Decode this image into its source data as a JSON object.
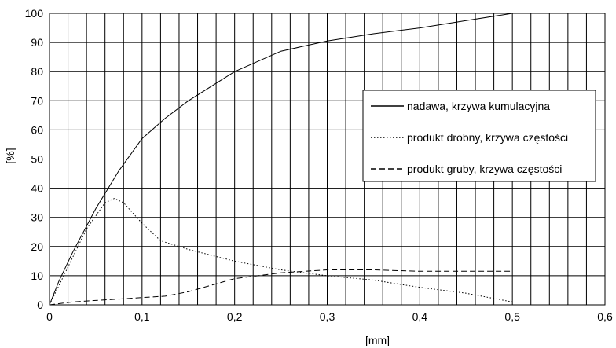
{
  "chart_data": {
    "type": "line",
    "xlabel": "[mm]",
    "ylabel": "[%]",
    "xlim": [
      0,
      0.6
    ],
    "ylim": [
      0,
      100
    ],
    "x_ticks": [
      0,
      0.1,
      0.2,
      0.3,
      0.4,
      0.5,
      0.6
    ],
    "x_tick_labels": [
      "0",
      "0,1",
      "0,2",
      "0,3",
      "0,4",
      "0,5",
      "0,6"
    ],
    "y_ticks": [
      0,
      10,
      20,
      30,
      40,
      50,
      60,
      70,
      80,
      90,
      100
    ],
    "y_tick_labels": [
      "0",
      "10",
      "20",
      "30",
      "40",
      "50",
      "60",
      "70",
      "80",
      "90",
      "100"
    ],
    "grid": true,
    "legend_position": "right",
    "series": [
      {
        "name": "nadawa, krzywa kumulacyjna",
        "style": "solid",
        "x": [
          0,
          0.01,
          0.025,
          0.05,
          0.075,
          0.1,
          0.125,
          0.15,
          0.2,
          0.25,
          0.3,
          0.35,
          0.4,
          0.45,
          0.5
        ],
        "y": [
          0,
          8,
          18,
          33,
          46,
          57,
          64,
          70,
          80,
          87,
          90.5,
          93,
          95,
          97.5,
          100
        ]
      },
      {
        "name": "produkt drobny, krzywa częstości",
        "style": "dotted",
        "x": [
          0,
          0.02,
          0.04,
          0.06,
          0.07,
          0.08,
          0.1,
          0.12,
          0.15,
          0.2,
          0.25,
          0.3,
          0.35,
          0.4,
          0.45,
          0.5
        ],
        "y": [
          0,
          13,
          26,
          35,
          36.5,
          35,
          28,
          22,
          19,
          15,
          12,
          10,
          8.5,
          6,
          4,
          1
        ]
      },
      {
        "name": "produkt gruby, krzywa częstości",
        "style": "dashed",
        "x": [
          0,
          0.025,
          0.05,
          0.075,
          0.1,
          0.125,
          0.15,
          0.2,
          0.25,
          0.3,
          0.35,
          0.4,
          0.45,
          0.5
        ],
        "y": [
          0,
          1,
          1.5,
          2,
          2.5,
          3,
          4.5,
          9,
          11,
          12,
          12,
          11.5,
          11.5,
          11.5
        ]
      }
    ]
  }
}
